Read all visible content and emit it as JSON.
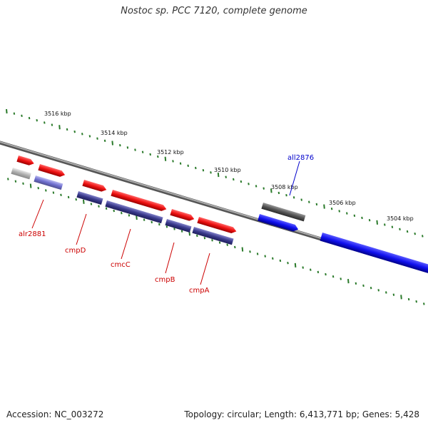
{
  "title": "Nostoc sp. PCC 7120, complete genome",
  "footer": {
    "accession": "Accession: NC_003272",
    "summary": "Topology: circular; Length: 6,413,771 bp; Genes: 5,428"
  },
  "ruler_labels": [
    "3516 kbp",
    "3514 kbp",
    "3512 kbp",
    "3510 kbp",
    "3508 kbp",
    "3506 kbp",
    "3504 kbp"
  ],
  "colors": {
    "forward": "#ee1111",
    "reverse": "#1010ee",
    "reverse_dark": "#3a3a8c",
    "grey": "#aaaaaa",
    "dark_grey": "#555555",
    "backbone": "#777777",
    "tick": "#2a7a2a",
    "label_red": "#cc0000",
    "label_blue": "#0000cc"
  },
  "gene_labels": {
    "alr2881": "alr2881",
    "cmpD": "cmpD",
    "cmcC": "cmcC",
    "cmpB": "cmpB",
    "cmpA": "cmpA",
    "all2876": "all2876"
  }
}
